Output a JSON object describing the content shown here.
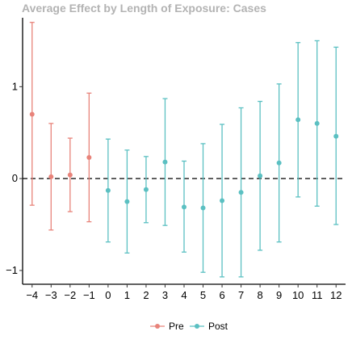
{
  "chart_data": {
    "type": "scatter",
    "title": "Average Effect by Length of Exposure: Cases",
    "xlabel": "",
    "ylabel": "",
    "xlim": [
      -4.5,
      12.5
    ],
    "ylim": [
      -1.15,
      1.75
    ],
    "x_ticks": [
      -4,
      -3,
      -2,
      -1,
      0,
      1,
      2,
      3,
      4,
      5,
      6,
      7,
      8,
      9,
      10,
      11,
      12
    ],
    "x_tick_labels": [
      "−4",
      "−3",
      "−2",
      "−1",
      "0",
      "1",
      "2",
      "3",
      "4",
      "5",
      "6",
      "7",
      "8",
      "9",
      "10",
      "11",
      "12"
    ],
    "y_ticks": [
      -1,
      0,
      1
    ],
    "y_tick_labels": [
      "−1",
      "0",
      "1"
    ],
    "reference_line": {
      "y": 0,
      "style": "dashed"
    },
    "grid": false,
    "legend_position": "bottom",
    "series": [
      {
        "name": "Pre",
        "color": "#e8837a",
        "points": [
          {
            "x": -4,
            "y": 0.7,
            "lo": -0.29,
            "hi": 1.7
          },
          {
            "x": -3,
            "y": 0.02,
            "lo": -0.56,
            "hi": 0.6
          },
          {
            "x": -2,
            "y": 0.04,
            "lo": -0.36,
            "hi": 0.44
          },
          {
            "x": -1,
            "y": 0.23,
            "lo": -0.47,
            "hi": 0.93
          }
        ]
      },
      {
        "name": "Post",
        "color": "#5bc0c2",
        "points": [
          {
            "x": 0,
            "y": -0.13,
            "lo": -0.69,
            "hi": 0.43
          },
          {
            "x": 1,
            "y": -0.25,
            "lo": -0.81,
            "hi": 0.31
          },
          {
            "x": 2,
            "y": -0.12,
            "lo": -0.48,
            "hi": 0.24
          },
          {
            "x": 3,
            "y": 0.18,
            "lo": -0.51,
            "hi": 0.87
          },
          {
            "x": 4,
            "y": -0.31,
            "lo": -0.8,
            "hi": 0.19
          },
          {
            "x": 5,
            "y": -0.32,
            "lo": -1.02,
            "hi": 0.38
          },
          {
            "x": 6,
            "y": -0.24,
            "lo": -1.07,
            "hi": 0.59
          },
          {
            "x": 7,
            "y": -0.15,
            "lo": -1.07,
            "hi": 0.77
          },
          {
            "x": 8,
            "y": 0.03,
            "lo": -0.78,
            "hi": 0.84
          },
          {
            "x": 9,
            "y": 0.17,
            "lo": -0.69,
            "hi": 1.03
          },
          {
            "x": 10,
            "y": 0.64,
            "lo": -0.2,
            "hi": 1.48
          },
          {
            "x": 11,
            "y": 0.6,
            "lo": -0.3,
            "hi": 1.5
          },
          {
            "x": 12,
            "y": 0.46,
            "lo": -0.5,
            "hi": 1.43
          }
        ]
      }
    ]
  }
}
